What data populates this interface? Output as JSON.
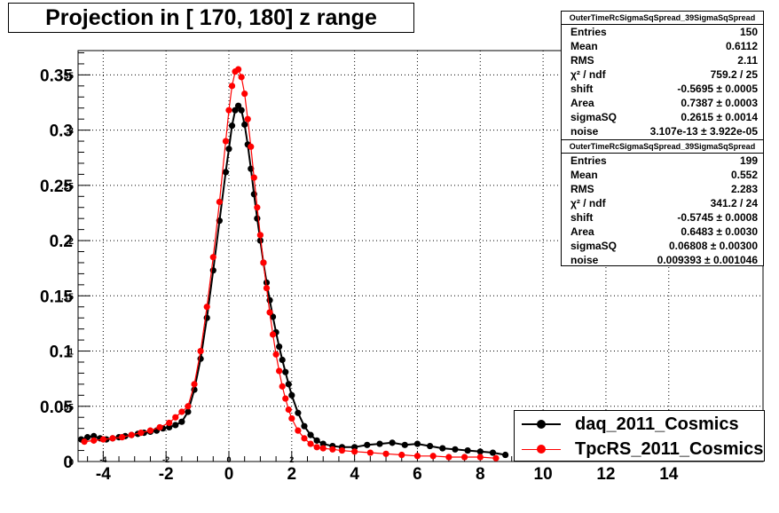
{
  "chart_data": {
    "type": "scatter",
    "title": "Projection in [ 170, 180] z range",
    "xlabel": "",
    "ylabel": "",
    "xlim": [
      -4.8,
      17.0
    ],
    "ylim": [
      0,
      0.372
    ],
    "x_ticks": [
      "-4",
      "-2",
      "0",
      "2",
      "4",
      "6",
      "8",
      "10",
      "12",
      "14"
    ],
    "x_tick_values": [
      -4,
      -2,
      0,
      2,
      4,
      6,
      8,
      10,
      12,
      14
    ],
    "x_small_ticks": [
      "-4",
      "-2",
      "0",
      "2"
    ],
    "y_ticks": [
      "0",
      "0.05",
      "0.1",
      "0.15",
      "0.2",
      "0.25",
      "0.3",
      "0.35"
    ],
    "y_tick_values": [
      0,
      0.05,
      0.1,
      0.15,
      0.2,
      0.25,
      0.3,
      0.35
    ],
    "y_tick_labels_large": [
      "0",
      "0.05",
      "0.1",
      "0.15",
      "0.2",
      "0.25",
      "0.3",
      "0.35"
    ],
    "y_tick_labels_small": [
      "0",
      ".05",
      ".1",
      ".15",
      ".2",
      ".25",
      ".3",
      ".35"
    ],
    "grid": true,
    "legend_position": "bottom-right",
    "series": [
      {
        "name": "daq_2011_Cosmics",
        "color": "#000000",
        "points": [
          [
            -4.7,
            0.02
          ],
          [
            -4.5,
            0.022
          ],
          [
            -4.3,
            0.023
          ],
          [
            -4.1,
            0.021
          ],
          [
            -3.9,
            0.02
          ],
          [
            -3.7,
            0.021
          ],
          [
            -3.5,
            0.022
          ],
          [
            -3.3,
            0.023
          ],
          [
            -3.1,
            0.024
          ],
          [
            -2.9,
            0.025
          ],
          [
            -2.7,
            0.026
          ],
          [
            -2.5,
            0.027
          ],
          [
            -2.3,
            0.028
          ],
          [
            -2.1,
            0.03
          ],
          [
            -1.9,
            0.031
          ],
          [
            -1.7,
            0.033
          ],
          [
            -1.5,
            0.036
          ],
          [
            -1.3,
            0.045
          ],
          [
            -1.1,
            0.065
          ],
          [
            -0.9,
            0.093
          ],
          [
            -0.7,
            0.13
          ],
          [
            -0.5,
            0.173
          ],
          [
            -0.3,
            0.218
          ],
          [
            -0.1,
            0.262
          ],
          [
            0.0,
            0.283
          ],
          [
            0.1,
            0.304
          ],
          [
            0.2,
            0.318
          ],
          [
            0.3,
            0.322
          ],
          [
            0.4,
            0.318
          ],
          [
            0.5,
            0.305
          ],
          [
            0.6,
            0.287
          ],
          [
            0.7,
            0.265
          ],
          [
            0.8,
            0.242
          ],
          [
            0.9,
            0.22
          ],
          [
            1.0,
            0.2
          ],
          [
            1.1,
            0.18
          ],
          [
            1.2,
            0.162
          ],
          [
            1.3,
            0.146
          ],
          [
            1.4,
            0.131
          ],
          [
            1.5,
            0.117
          ],
          [
            1.6,
            0.104
          ],
          [
            1.7,
            0.092
          ],
          [
            1.8,
            0.081
          ],
          [
            1.9,
            0.07
          ],
          [
            2.0,
            0.06
          ],
          [
            2.2,
            0.044
          ],
          [
            2.4,
            0.032
          ],
          [
            2.6,
            0.024
          ],
          [
            2.8,
            0.019
          ],
          [
            3.0,
            0.016
          ],
          [
            3.3,
            0.014
          ],
          [
            3.6,
            0.013
          ],
          [
            4.0,
            0.013
          ],
          [
            4.4,
            0.015
          ],
          [
            4.8,
            0.016
          ],
          [
            5.2,
            0.017
          ],
          [
            5.6,
            0.015
          ],
          [
            6.0,
            0.016
          ],
          [
            6.4,
            0.014
          ],
          [
            6.8,
            0.012
          ],
          [
            7.2,
            0.011
          ],
          [
            7.6,
            0.01
          ],
          [
            8.0,
            0.009
          ],
          [
            8.4,
            0.008
          ],
          [
            8.8,
            0.006
          ]
        ]
      },
      {
        "name": "TpcRS_2011_Cosmics",
        "color": "#ff0000",
        "points": [
          [
            -4.6,
            0.018
          ],
          [
            -4.3,
            0.019
          ],
          [
            -4.0,
            0.02
          ],
          [
            -3.7,
            0.021
          ],
          [
            -3.4,
            0.022
          ],
          [
            -3.1,
            0.024
          ],
          [
            -2.8,
            0.026
          ],
          [
            -2.5,
            0.028
          ],
          [
            -2.2,
            0.031
          ],
          [
            -1.9,
            0.035
          ],
          [
            -1.7,
            0.04
          ],
          [
            -1.5,
            0.045
          ],
          [
            -1.3,
            0.05
          ],
          [
            -1.1,
            0.07
          ],
          [
            -0.9,
            0.1
          ],
          [
            -0.7,
            0.14
          ],
          [
            -0.5,
            0.185
          ],
          [
            -0.3,
            0.235
          ],
          [
            -0.1,
            0.29
          ],
          [
            0.0,
            0.318
          ],
          [
            0.1,
            0.34
          ],
          [
            0.2,
            0.353
          ],
          [
            0.3,
            0.355
          ],
          [
            0.4,
            0.348
          ],
          [
            0.5,
            0.333
          ],
          [
            0.6,
            0.31
          ],
          [
            0.7,
            0.285
          ],
          [
            0.8,
            0.257
          ],
          [
            0.9,
            0.23
          ],
          [
            1.0,
            0.205
          ],
          [
            1.1,
            0.18
          ],
          [
            1.2,
            0.157
          ],
          [
            1.3,
            0.135
          ],
          [
            1.4,
            0.115
          ],
          [
            1.5,
            0.097
          ],
          [
            1.6,
            0.082
          ],
          [
            1.7,
            0.068
          ],
          [
            1.8,
            0.057
          ],
          [
            1.9,
            0.047
          ],
          [
            2.0,
            0.039
          ],
          [
            2.2,
            0.028
          ],
          [
            2.4,
            0.021
          ],
          [
            2.6,
            0.016
          ],
          [
            2.8,
            0.013
          ],
          [
            3.0,
            0.012
          ],
          [
            3.3,
            0.011
          ],
          [
            3.6,
            0.01
          ],
          [
            4.0,
            0.009
          ],
          [
            4.5,
            0.008
          ],
          [
            5.0,
            0.007
          ],
          [
            5.5,
            0.006
          ],
          [
            6.0,
            0.005
          ],
          [
            6.5,
            0.005
          ],
          [
            7.0,
            0.004
          ],
          [
            7.5,
            0.004
          ],
          [
            8.0,
            0.004
          ],
          [
            8.5,
            0.003
          ]
        ]
      }
    ]
  },
  "stats_boxes": [
    {
      "header": "OuterTimeRcSigmaSqSpread_39SigmaSqSpread",
      "rows": [
        {
          "label": "Entries",
          "value": "150"
        },
        {
          "label": "Mean",
          "value": "0.6112"
        },
        {
          "label": "RMS",
          "value": "2.11"
        },
        {
          "label": "χ² / ndf",
          "value": "759.2 / 25"
        },
        {
          "label": "shift",
          "value": "-0.5695 ± 0.0005"
        },
        {
          "label": "Area",
          "value": "0.7387 ± 0.0003"
        },
        {
          "label": "sigmaSQ",
          "value": "0.2615 ± 0.0014"
        },
        {
          "label": "noise",
          "value": "3.107e-13 ± 3.922e-05"
        }
      ]
    },
    {
      "header": "OuterTimeRcSigmaSqSpread_39SigmaSqSpread",
      "rows": [
        {
          "label": "Entries",
          "value": "199"
        },
        {
          "label": "Mean",
          "value": "0.552"
        },
        {
          "label": "RMS",
          "value": "2.283"
        },
        {
          "label": "χ² / ndf",
          "value": "341.2 / 24"
        },
        {
          "label": "shift",
          "value": "-0.5745 ± 0.0008"
        },
        {
          "label": "Area",
          "value": "0.6483 ± 0.0030"
        },
        {
          "label": "sigmaSQ",
          "value": "0.06808 ± 0.00300"
        },
        {
          "label": "noise",
          "value": "0.009393 ± 0.001046"
        }
      ]
    }
  ],
  "legend": {
    "entries": [
      {
        "label": "daq_2011_Cosmics",
        "color": "#000000"
      },
      {
        "label": "TpcRS_2011_Cosmics",
        "color": "#ff0000"
      }
    ]
  }
}
